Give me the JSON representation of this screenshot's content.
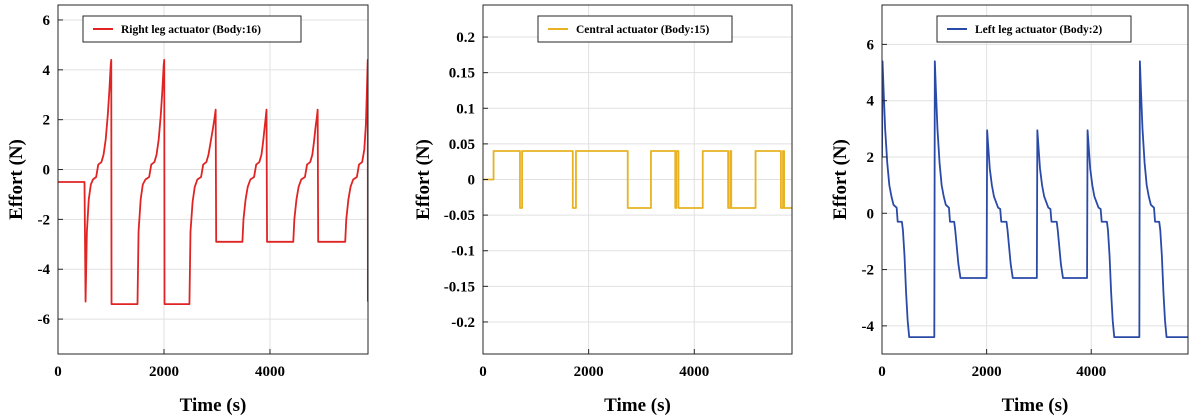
{
  "chart_data": [
    {
      "type": "line",
      "color": "#e02424",
      "xlabel": "Time (s)",
      "ylabel": "Effort (N)",
      "xlim": [
        0,
        5850
      ],
      "ylim": [
        -7.4,
        6.6
      ],
      "xticks": [
        0,
        2000,
        4000
      ],
      "xtick_labels": [
        "0",
        "2000",
        "4000"
      ],
      "yticks": [
        -6,
        -4,
        -2,
        0,
        2,
        4,
        6
      ],
      "ytick_labels": [
        "-6",
        "-4",
        "-2",
        "0",
        "2",
        "4",
        "6"
      ],
      "grid": true,
      "legend_position": "top-left",
      "series": [
        {
          "name": "Right leg actuator (Body:16)",
          "points": [
            [
              0,
              -0.5
            ],
            [
              500,
              -0.5
            ],
            [
              520,
              -5.3
            ],
            [
              545,
              -2.5
            ],
            [
              580,
              -1.2
            ],
            [
              620,
              -0.6
            ],
            [
              660,
              -0.4
            ],
            [
              720,
              -0.3
            ],
            [
              760,
              0.2
            ],
            [
              820,
              0.3
            ],
            [
              860,
              0.6
            ],
            [
              900,
              1.2
            ],
            [
              940,
              2.2
            ],
            [
              970,
              3.2
            ],
            [
              995,
              4.2
            ],
            [
              1005,
              4.4
            ],
            [
              1010,
              -5.4
            ],
            [
              1500,
              -5.4
            ],
            [
              1520,
              -2.5
            ],
            [
              1560,
              -1.2
            ],
            [
              1600,
              -0.6
            ],
            [
              1650,
              -0.4
            ],
            [
              1720,
              -0.3
            ],
            [
              1760,
              0.2
            ],
            [
              1820,
              0.3
            ],
            [
              1860,
              0.6
            ],
            [
              1900,
              1.2
            ],
            [
              1940,
              2.2
            ],
            [
              1970,
              3.2
            ],
            [
              1995,
              4.2
            ],
            [
              2005,
              4.4
            ],
            [
              2010,
              -5.4
            ],
            [
              2480,
              -5.4
            ],
            [
              2500,
              -2.5
            ],
            [
              2540,
              -1.3
            ],
            [
              2580,
              -0.7
            ],
            [
              2630,
              -0.4
            ],
            [
              2700,
              -0.3
            ],
            [
              2740,
              0.2
            ],
            [
              2800,
              0.3
            ],
            [
              2840,
              0.6
            ],
            [
              2880,
              1.1
            ],
            [
              2920,
              1.6
            ],
            [
              2950,
              2.0
            ],
            [
              2975,
              2.4
            ],
            [
              2985,
              -2.9
            ],
            [
              3480,
              -2.9
            ],
            [
              3500,
              -2.0
            ],
            [
              3540,
              -1.2
            ],
            [
              3580,
              -0.7
            ],
            [
              3630,
              -0.4
            ],
            [
              3700,
              -0.3
            ],
            [
              3740,
              0.2
            ],
            [
              3800,
              0.3
            ],
            [
              3840,
              0.6
            ],
            [
              3870,
              1.1
            ],
            [
              3900,
              1.7
            ],
            [
              3920,
              2.1
            ],
            [
              3935,
              2.4
            ],
            [
              3945,
              -2.9
            ],
            [
              4440,
              -2.9
            ],
            [
              4460,
              -2.0
            ],
            [
              4500,
              -1.2
            ],
            [
              4540,
              -0.7
            ],
            [
              4590,
              -0.4
            ],
            [
              4660,
              -0.3
            ],
            [
              4700,
              0.2
            ],
            [
              4760,
              0.3
            ],
            [
              4800,
              0.6
            ],
            [
              4830,
              1.1
            ],
            [
              4860,
              1.7
            ],
            [
              4885,
              2.1
            ],
            [
              4900,
              2.4
            ],
            [
              4910,
              -2.9
            ],
            [
              5420,
              -2.9
            ],
            [
              5440,
              -2.0
            ],
            [
              5480,
              -1.2
            ],
            [
              5520,
              -0.7
            ],
            [
              5570,
              -0.4
            ],
            [
              5640,
              -0.3
            ],
            [
              5680,
              0.2
            ],
            [
              5740,
              0.3
            ],
            [
              5780,
              0.8
            ],
            [
              5810,
              1.8
            ],
            [
              5830,
              3.2
            ],
            [
              5845,
              4.4
            ],
            [
              5848,
              -5.3
            ]
          ]
        }
      ]
    },
    {
      "type": "line",
      "color": "#e8b222",
      "xlabel": "Time (s)",
      "ylabel": "Effort (N)",
      "xlim": [
        0,
        5850
      ],
      "ylim": [
        -0.245,
        0.245
      ],
      "xticks": [
        0,
        2000,
        4000
      ],
      "xtick_labels": [
        "0",
        "2000",
        "4000"
      ],
      "yticks": [
        -0.2,
        -0.15,
        -0.1,
        -0.05,
        0,
        0.05,
        0.1,
        0.15,
        0.2
      ],
      "ytick_labels": [
        "-0.2",
        "-0.15",
        "-0.1",
        "-0.05",
        "0",
        "0.05",
        "0.1",
        "0.15",
        "0.2"
      ],
      "grid": true,
      "legend_position": "top-center",
      "series": [
        {
          "name": "Central actuator (Body:15)",
          "points": [
            [
              0,
              0
            ],
            [
              200,
              0
            ],
            [
              200,
              0.04
            ],
            [
              700,
              0.04
            ],
            [
              700,
              -0.04
            ],
            [
              740,
              -0.04
            ],
            [
              740,
              0.04
            ],
            [
              1700,
              0.04
            ],
            [
              1700,
              -0.04
            ],
            [
              1760,
              -0.04
            ],
            [
              1760,
              0.04
            ],
            [
              2700,
              0.04
            ],
            [
              2700,
              0.04
            ],
            [
              2740,
              0.04
            ],
            [
              2740,
              -0.04
            ],
            [
              3180,
              -0.04
            ],
            [
              3180,
              0.04
            ],
            [
              3640,
              0.04
            ],
            [
              3640,
              -0.04
            ],
            [
              3660,
              -0.04
            ],
            [
              3660,
              0.04
            ],
            [
              3700,
              0.04
            ],
            [
              3700,
              -0.04
            ],
            [
              4160,
              -0.04
            ],
            [
              4160,
              0.04
            ],
            [
              4640,
              0.04
            ],
            [
              4640,
              -0.04
            ],
            [
              4680,
              -0.04
            ],
            [
              4680,
              0.04
            ],
            [
              4700,
              0.04
            ],
            [
              4700,
              -0.04
            ],
            [
              5160,
              -0.04
            ],
            [
              5160,
              0.04
            ],
            [
              5640,
              0.04
            ],
            [
              5640,
              -0.04
            ],
            [
              5680,
              -0.04
            ],
            [
              5680,
              0.04
            ],
            [
              5700,
              0.04
            ],
            [
              5700,
              -0.04
            ],
            [
              5850,
              -0.04
            ]
          ]
        }
      ]
    },
    {
      "type": "line",
      "color": "#2a4aa8",
      "xlabel": "Time (s)",
      "ylabel": "Effort (N)",
      "xlim": [
        0,
        5850
      ],
      "ylim": [
        -5.0,
        7.4
      ],
      "xticks": [
        0,
        2000,
        4000
      ],
      "xtick_labels": [
        "0",
        "2000",
        "4000"
      ],
      "yticks": [
        -4,
        -2,
        0,
        2,
        4,
        6
      ],
      "ytick_labels": [
        "-4",
        "-2",
        "0",
        "2",
        "4",
        "6"
      ],
      "grid": true,
      "legend_position": "top-center",
      "series": [
        {
          "name": "Left leg actuator (Body:2)",
          "points": [
            [
              0,
              2.0
            ],
            [
              10,
              5.4
            ],
            [
              30,
              4.4
            ],
            [
              60,
              3.0
            ],
            [
              100,
              1.8
            ],
            [
              140,
              1.0
            ],
            [
              180,
              0.6
            ],
            [
              220,
              0.3
            ],
            [
              280,
              0.2
            ],
            [
              300,
              -0.3
            ],
            [
              380,
              -0.3
            ],
            [
              400,
              -0.6
            ],
            [
              430,
              -1.5
            ],
            [
              460,
              -2.8
            ],
            [
              490,
              -3.8
            ],
            [
              520,
              -4.4
            ],
            [
              1000,
              -4.4
            ],
            [
              1010,
              5.4
            ],
            [
              1030,
              4.4
            ],
            [
              1060,
              3.0
            ],
            [
              1100,
              1.8
            ],
            [
              1140,
              1.0
            ],
            [
              1180,
              0.6
            ],
            [
              1220,
              0.3
            ],
            [
              1280,
              0.2
            ],
            [
              1300,
              -0.3
            ],
            [
              1380,
              -0.3
            ],
            [
              1400,
              -0.6
            ],
            [
              1430,
              -1.2
            ],
            [
              1460,
              -1.8
            ],
            [
              1500,
              -2.3
            ],
            [
              2000,
              -2.3
            ],
            [
              2010,
              2.95
            ],
            [
              2030,
              2.4
            ],
            [
              2060,
              1.6
            ],
            [
              2100,
              1.0
            ],
            [
              2140,
              0.6
            ],
            [
              2180,
              0.4
            ],
            [
              2220,
              0.2
            ],
            [
              2260,
              0.15
            ],
            [
              2280,
              -0.3
            ],
            [
              2380,
              -0.3
            ],
            [
              2400,
              -0.6
            ],
            [
              2430,
              -1.2
            ],
            [
              2460,
              -1.8
            ],
            [
              2500,
              -2.3
            ],
            [
              2960,
              -2.3
            ],
            [
              2970,
              2.95
            ],
            [
              2990,
              2.4
            ],
            [
              3020,
              1.6
            ],
            [
              3060,
              1.0
            ],
            [
              3100,
              0.6
            ],
            [
              3140,
              0.4
            ],
            [
              3180,
              0.2
            ],
            [
              3220,
              0.15
            ],
            [
              3240,
              -0.3
            ],
            [
              3340,
              -0.3
            ],
            [
              3360,
              -0.6
            ],
            [
              3390,
              -1.2
            ],
            [
              3420,
              -1.8
            ],
            [
              3460,
              -2.3
            ],
            [
              3920,
              -2.3
            ],
            [
              3930,
              2.95
            ],
            [
              3950,
              2.4
            ],
            [
              3980,
              1.6
            ],
            [
              4020,
              1.0
            ],
            [
              4060,
              0.6
            ],
            [
              4100,
              0.4
            ],
            [
              4140,
              0.2
            ],
            [
              4180,
              0.15
            ],
            [
              4200,
              -0.3
            ],
            [
              4300,
              -0.3
            ],
            [
              4320,
              -0.6
            ],
            [
              4350,
              -1.5
            ],
            [
              4380,
              -2.8
            ],
            [
              4410,
              -3.8
            ],
            [
              4440,
              -4.4
            ],
            [
              4920,
              -4.4
            ],
            [
              4930,
              5.4
            ],
            [
              4950,
              4.4
            ],
            [
              4980,
              3.0
            ],
            [
              5020,
              1.8
            ],
            [
              5060,
              1.0
            ],
            [
              5100,
              0.6
            ],
            [
              5140,
              0.3
            ],
            [
              5200,
              0.2
            ],
            [
              5220,
              -0.3
            ],
            [
              5300,
              -0.3
            ],
            [
              5320,
              -0.6
            ],
            [
              5350,
              -1.5
            ],
            [
              5380,
              -2.8
            ],
            [
              5410,
              -3.8
            ],
            [
              5440,
              -4.4
            ],
            [
              5850,
              -4.4
            ]
          ]
        }
      ]
    }
  ]
}
